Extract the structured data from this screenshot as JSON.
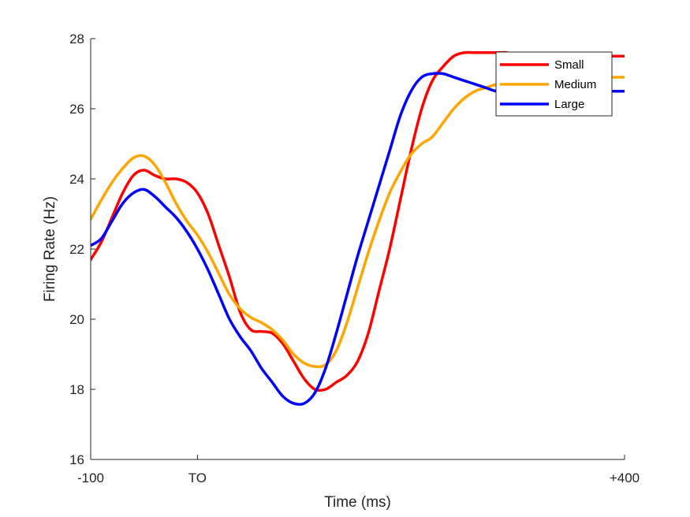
{
  "chart_data": {
    "type": "line",
    "title": "",
    "xlabel": "Time (ms)",
    "ylabel": "Firing Rate (Hz)",
    "xlim": [
      -100,
      400
    ],
    "ylim": [
      16,
      28
    ],
    "x_ticks": [
      {
        "value": -100,
        "label": "-100"
      },
      {
        "value": 0,
        "label": "TO"
      },
      {
        "value": 400,
        "label": "+400"
      }
    ],
    "y_ticks": [
      16,
      18,
      20,
      22,
      24,
      26,
      28
    ],
    "grid": false,
    "legend_position": "top-right",
    "series": [
      {
        "name": "Small",
        "color": "#ff0000",
        "x": [
          -100,
          -90,
          -80,
          -70,
          -60,
          -50,
          -40,
          -30,
          -20,
          -10,
          0,
          10,
          20,
          30,
          40,
          50,
          60,
          70,
          80,
          90,
          100,
          110,
          120,
          130,
          140,
          150,
          160,
          170,
          180,
          190,
          200,
          210,
          220,
          230,
          240,
          250,
          260,
          270,
          280,
          290,
          300,
          310,
          320,
          330,
          340,
          350,
          360,
          370,
          380,
          390,
          400
        ],
        "values": [
          21.7,
          22.2,
          22.9,
          23.6,
          24.1,
          24.25,
          24.1,
          24.0,
          24.0,
          23.9,
          23.6,
          23.0,
          22.1,
          21.2,
          20.2,
          19.7,
          19.65,
          19.6,
          19.3,
          18.8,
          18.3,
          18.0,
          18.0,
          18.2,
          18.4,
          18.8,
          19.6,
          20.8,
          22.0,
          23.4,
          24.8,
          26.0,
          26.8,
          27.2,
          27.5,
          27.6,
          27.6,
          27.6,
          27.6,
          27.6,
          27.5,
          27.5,
          27.5,
          27.5,
          27.5,
          27.5,
          27.5,
          27.5,
          27.5,
          27.5,
          27.5
        ]
      },
      {
        "name": "Medium",
        "color": "#ffa500",
        "x": [
          -100,
          -90,
          -80,
          -70,
          -60,
          -50,
          -40,
          -30,
          -20,
          -10,
          0,
          10,
          20,
          30,
          40,
          50,
          60,
          70,
          80,
          90,
          100,
          110,
          120,
          130,
          140,
          150,
          160,
          170,
          180,
          190,
          200,
          210,
          220,
          230,
          240,
          250,
          260,
          270,
          280,
          290,
          300,
          310,
          320,
          330,
          340,
          350,
          360,
          370,
          380,
          390,
          400
        ],
        "values": [
          22.85,
          23.4,
          23.9,
          24.3,
          24.6,
          24.65,
          24.4,
          23.9,
          23.3,
          22.8,
          22.4,
          21.9,
          21.3,
          20.7,
          20.3,
          20.05,
          19.9,
          19.7,
          19.4,
          19.0,
          18.75,
          18.65,
          18.7,
          19.1,
          19.9,
          20.9,
          21.9,
          22.8,
          23.6,
          24.2,
          24.7,
          25.0,
          25.2,
          25.6,
          26.0,
          26.3,
          26.5,
          26.6,
          26.7,
          26.8,
          26.9,
          26.9,
          26.9,
          26.9,
          26.9,
          26.9,
          26.9,
          26.9,
          26.9,
          26.9,
          26.9
        ]
      },
      {
        "name": "Large",
        "color": "#0000ff",
        "x": [
          -100,
          -90,
          -80,
          -70,
          -60,
          -50,
          -40,
          -30,
          -20,
          -10,
          0,
          10,
          20,
          30,
          40,
          50,
          60,
          70,
          80,
          90,
          100,
          110,
          120,
          130,
          140,
          150,
          160,
          170,
          180,
          190,
          200,
          210,
          220,
          230,
          240,
          250,
          260,
          270,
          280,
          290,
          300,
          310,
          320,
          330,
          340,
          350,
          360,
          370,
          380,
          390,
          400
        ],
        "values": [
          22.1,
          22.3,
          22.8,
          23.3,
          23.6,
          23.7,
          23.5,
          23.2,
          22.9,
          22.5,
          22.0,
          21.4,
          20.7,
          20.0,
          19.5,
          19.1,
          18.6,
          18.2,
          17.8,
          17.6,
          17.6,
          17.9,
          18.6,
          19.6,
          20.7,
          21.8,
          22.8,
          23.8,
          24.8,
          25.8,
          26.5,
          26.9,
          27.0,
          27.0,
          26.9,
          26.8,
          26.7,
          26.6,
          26.5,
          26.5,
          26.5,
          26.5,
          26.5,
          26.5,
          26.5,
          26.5,
          26.5,
          26.5,
          26.5,
          26.5,
          26.5
        ]
      }
    ]
  }
}
